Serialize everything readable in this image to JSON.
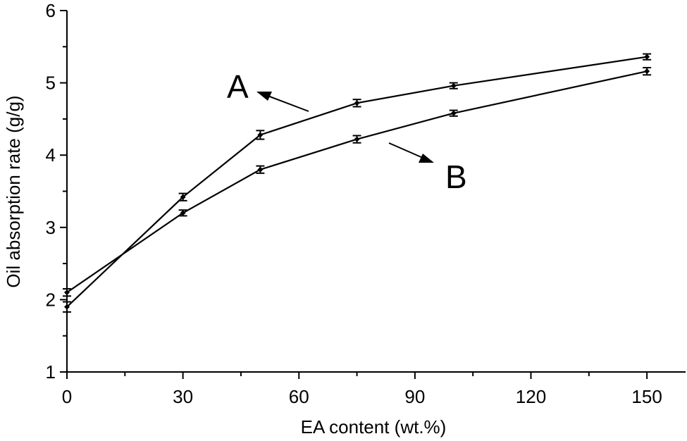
{
  "chart_data": {
    "type": "line",
    "title": "",
    "xlabel": "EA content (wt.%)",
    "ylabel": "Oil absorption rate (g/g)",
    "xlim": [
      0,
      160
    ],
    "ylim": [
      1,
      6
    ],
    "x_ticks": [
      0,
      30,
      60,
      90,
      120,
      150
    ],
    "y_ticks": [
      1,
      2,
      3,
      4,
      5,
      6
    ],
    "grid": false,
    "series": [
      {
        "name": "A",
        "x": [
          0,
          30,
          50,
          75,
          100,
          150
        ],
        "y": [
          1.9,
          3.42,
          4.28,
          4.72,
          4.96,
          5.36
        ],
        "err": [
          0.07,
          0.05,
          0.06,
          0.05,
          0.04,
          0.04
        ]
      },
      {
        "name": "B",
        "x": [
          0,
          30,
          50,
          75,
          100,
          150
        ],
        "y": [
          2.1,
          3.2,
          3.8,
          4.22,
          4.58,
          5.16
        ],
        "err": [
          0.05,
          0.04,
          0.05,
          0.05,
          0.04,
          0.05
        ]
      }
    ]
  }
}
